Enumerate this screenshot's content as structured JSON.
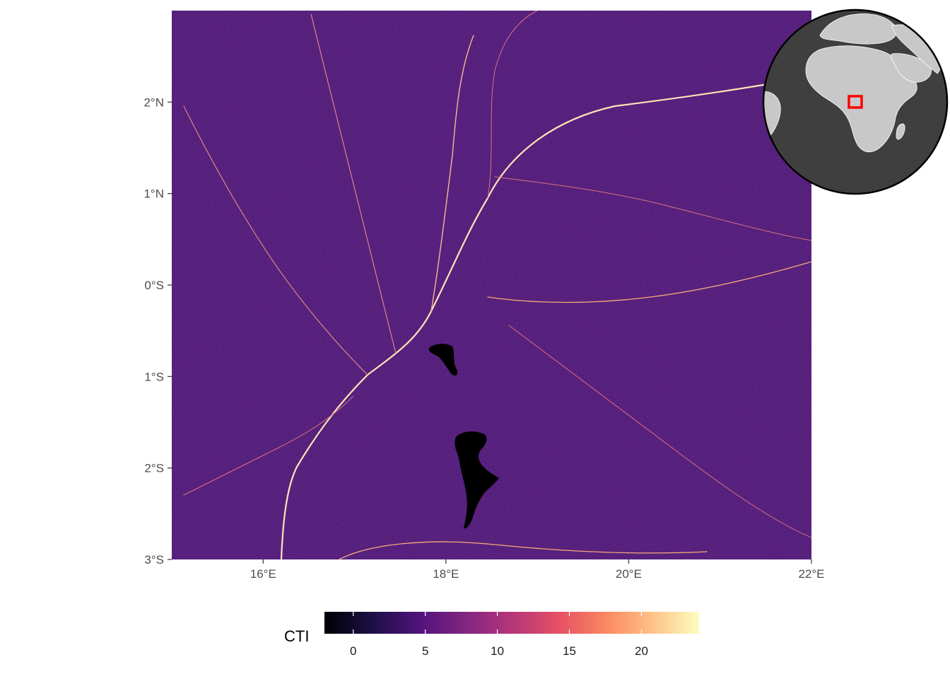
{
  "map": {
    "extent": {
      "lon": [
        15,
        22
      ],
      "lat": [
        -3,
        3
      ]
    },
    "x_ticks": [
      {
        "value": 16,
        "label": "16°E"
      },
      {
        "value": 18,
        "label": "18°E"
      },
      {
        "value": 20,
        "label": "20°E"
      },
      {
        "value": 22,
        "label": "22°E"
      }
    ],
    "y_ticks": [
      {
        "value": 2,
        "label": "2°N"
      },
      {
        "value": 1,
        "label": "1°N"
      },
      {
        "value": 0,
        "label": "0°S"
      },
      {
        "value": -1,
        "label": "1°S"
      },
      {
        "value": -2,
        "label": "2°S"
      },
      {
        "value": -3,
        "label": "3°S"
      }
    ],
    "background_color": "#4a1875",
    "river_color": "#f6a97a",
    "lake_color": "#000000"
  },
  "legend": {
    "title": "CTI",
    "min": -2,
    "max": 24,
    "ticks": [
      0,
      5,
      10,
      15,
      20
    ],
    "palette": [
      "#000004",
      "#1c1044",
      "#4f127b",
      "#812581",
      "#b5367a",
      "#e55064",
      "#fb8761",
      "#fec287",
      "#fcfdbf"
    ]
  },
  "inset": {
    "globe_color": "#3f3f3f",
    "land_color": "#c8c8c8",
    "highlight_color": "#ff0000"
  }
}
